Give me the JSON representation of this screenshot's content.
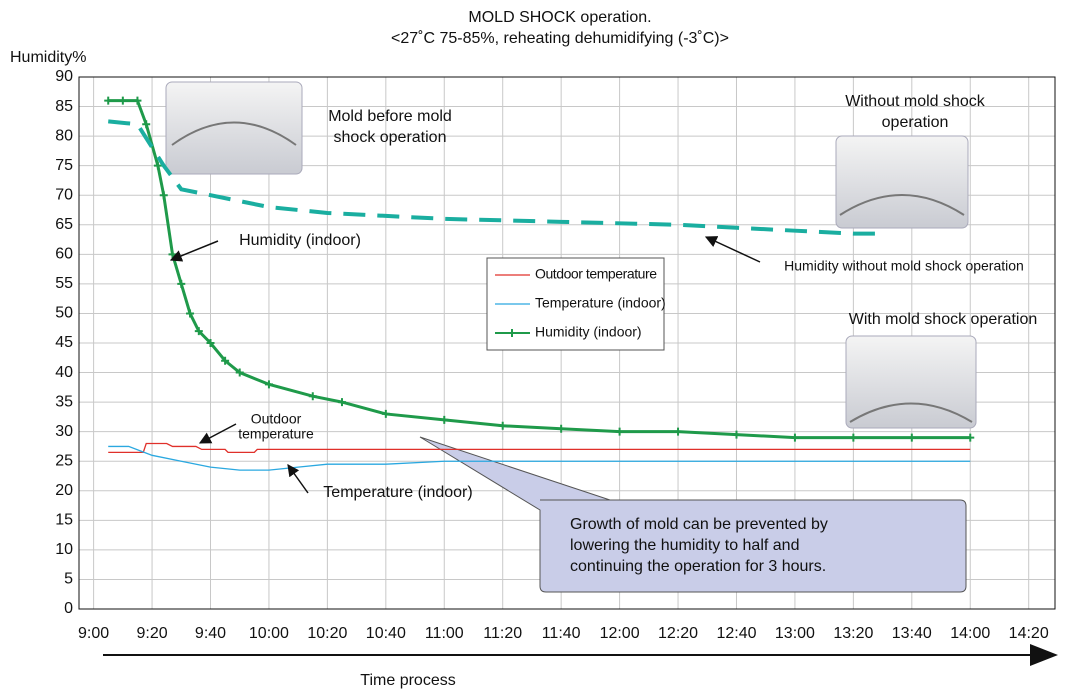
{
  "chart_data": {
    "type": "line",
    "title": [
      "MOLD SHOCK operation.",
      "<27˚C 75-85%, reheating dehumidifying (-3˚C)>"
    ],
    "y_label": "Humidity%",
    "x_label": "Time process",
    "xlim": [
      535,
      869
    ],
    "ylim": [
      0,
      90
    ],
    "yticks": [
      0,
      5,
      10,
      15,
      20,
      25,
      30,
      35,
      40,
      45,
      50,
      55,
      60,
      65,
      70,
      75,
      80,
      85,
      90
    ],
    "xticks": [
      {
        "value": 540,
        "label": "9:00"
      },
      {
        "value": 560,
        "label": "9:20"
      },
      {
        "value": 580,
        "label": "9:40"
      },
      {
        "value": 600,
        "label": "10:00"
      },
      {
        "value": 620,
        "label": "10:20"
      },
      {
        "value": 640,
        "label": "10:40"
      },
      {
        "value": 660,
        "label": "11:00"
      },
      {
        "value": 680,
        "label": "11:20"
      },
      {
        "value": 700,
        "label": "11:40"
      },
      {
        "value": 720,
        "label": "12:00"
      },
      {
        "value": 740,
        "label": "12:20"
      },
      {
        "value": 760,
        "label": "12:40"
      },
      {
        "value": 780,
        "label": "13:00"
      },
      {
        "value": 800,
        "label": "13:20"
      },
      {
        "value": 820,
        "label": "13:40"
      },
      {
        "value": 840,
        "label": "14:00"
      },
      {
        "value": 860,
        "label": "14:20"
      }
    ],
    "grid": true,
    "series": [
      {
        "name": "Outdoor temperature",
        "color": "#e0302a",
        "x": [
          545,
          557,
          558,
          565,
          567,
          575,
          577,
          585,
          586,
          595,
          596,
          840
        ],
        "values": [
          26.5,
          26.5,
          28,
          28,
          27.5,
          27.5,
          27,
          27,
          26.5,
          26.5,
          27,
          27
        ]
      },
      {
        "name": "Temperature (indoor)",
        "color": "#2aa8e0",
        "x": [
          545,
          552,
          560,
          570,
          580,
          590,
          600,
          610,
          620,
          640,
          660,
          700,
          740,
          780,
          840
        ],
        "values": [
          27.5,
          27.5,
          26,
          25,
          24,
          23.5,
          23.5,
          24,
          24.5,
          24.5,
          25,
          25,
          25,
          25,
          25
        ]
      },
      {
        "name": "Humidity (indoor)",
        "color": "#1f9a4a",
        "x": [
          545,
          550,
          555,
          558,
          562,
          564,
          567,
          570,
          573,
          576,
          580,
          585,
          590,
          600,
          615,
          625,
          640,
          660,
          680,
          700,
          720,
          740,
          760,
          780,
          800,
          820,
          840
        ],
        "values": [
          86,
          86,
          86,
          82,
          75,
          70,
          60,
          55,
          50,
          47,
          45,
          42,
          40,
          38,
          36,
          35,
          33,
          32,
          31,
          30.5,
          30,
          30,
          29.5,
          29,
          29,
          29,
          29
        ]
      }
    ],
    "reference_line": {
      "name": "Humidity without mold shock operation",
      "color": "#1aaea0",
      "x": [
        545,
        555,
        564,
        570,
        580,
        600,
        620,
        640,
        660,
        700,
        740,
        780,
        800,
        810
      ],
      "values": [
        82.5,
        82,
        75,
        71,
        70,
        68,
        67,
        66.5,
        66,
        65.5,
        65,
        64,
        63.5,
        63.5
      ]
    },
    "annotations": [
      {
        "text": [
          "Mold before mold",
          "shock operation"
        ]
      },
      {
        "text": [
          "Without mold shock",
          "operation"
        ]
      },
      {
        "text": [
          "Humidity (indoor)"
        ]
      },
      {
        "text": [
          "With mold shock operation"
        ]
      },
      {
        "text": [
          "Outdoor",
          "temperature"
        ]
      },
      {
        "text": [
          "Temperature (indoor)"
        ]
      },
      {
        "text": [
          "Growth of mold can be prevented by",
          "lowering the humidity to half and",
          "continuing the operation for 3 hours."
        ]
      }
    ]
  }
}
